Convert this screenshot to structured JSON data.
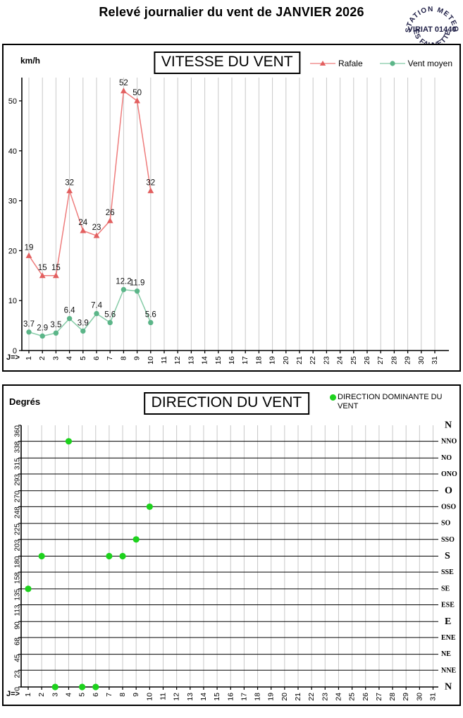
{
  "page": {
    "title": "Relevé journalier du vent de JANVIER 2026"
  },
  "stamp": {
    "arc_top": "STATION METEO",
    "center": "VIRIAT 01440",
    "arc_bottom": "LES FAUVETTES"
  },
  "colors": {
    "grid": "#c8c8c8",
    "axis": "#000000",
    "rafale_line": "#ee7c7c",
    "rafale_marker": "#e25f5f",
    "vent_moyen_line": "#85cba6",
    "vent_moyen_marker": "#5bb588",
    "direction_point": "#1dd21d",
    "stamp_ink": "#1f1f46"
  },
  "chart_data": [
    {
      "type": "line",
      "title": "VITESSE DU VENT",
      "unit_label": "km/h",
      "x_axis_label": "J=>",
      "x": [
        1,
        2,
        3,
        4,
        5,
        6,
        7,
        8,
        9,
        10,
        11,
        12,
        13,
        14,
        15,
        16,
        17,
        18,
        19,
        20,
        21,
        22,
        23,
        24,
        25,
        26,
        27,
        28,
        29,
        30,
        31
      ],
      "yticks": [
        0,
        10,
        20,
        30,
        40,
        50
      ],
      "ylim": [
        0,
        55
      ],
      "grid": "vertical-only",
      "legend_position": "top-right",
      "series": [
        {
          "name": "Rafale",
          "marker": "triangle",
          "x": [
            1,
            2,
            3,
            4,
            5,
            6,
            7,
            8,
            9,
            10
          ],
          "values": [
            19,
            15,
            15,
            32,
            24,
            23,
            26,
            52,
            50,
            32
          ]
        },
        {
          "name": "Vent moyen",
          "marker": "circle",
          "x": [
            1,
            2,
            3,
            4,
            5,
            6,
            7,
            8,
            9,
            10
          ],
          "values": [
            3.7,
            2.9,
            3.5,
            6.4,
            3.9,
            7.4,
            5.6,
            12.2,
            11.9,
            5.6
          ]
        }
      ]
    },
    {
      "type": "scatter",
      "title": "DIRECTION DU VENT",
      "unit_label": "Degrés",
      "x_axis_label": "J=>",
      "x": [
        1,
        2,
        3,
        4,
        5,
        6,
        7,
        8,
        9,
        10,
        11,
        12,
        13,
        14,
        15,
        16,
        17,
        18,
        19,
        20,
        21,
        22,
        23,
        24,
        25,
        26,
        27,
        28,
        29,
        30,
        31
      ],
      "yticks": [
        0,
        23,
        45,
        68,
        90,
        113,
        135,
        158,
        180,
        203,
        225,
        248,
        270,
        293,
        315,
        338,
        360
      ],
      "ylim": [
        0,
        360
      ],
      "grid": "full",
      "right_axis_labels_top_to_bottom": [
        {
          "label": "N",
          "major": true
        },
        {
          "label": "NNO",
          "major": false
        },
        {
          "label": "NO",
          "major": false
        },
        {
          "label": "ONO",
          "major": false
        },
        {
          "label": "O",
          "major": true
        },
        {
          "label": "OSO",
          "major": false
        },
        {
          "label": "SO",
          "major": false
        },
        {
          "label": "SSO",
          "major": false
        },
        {
          "label": "S",
          "major": true
        },
        {
          "label": "SSE",
          "major": false
        },
        {
          "label": "SE",
          "major": false
        },
        {
          "label": "ESE",
          "major": false
        },
        {
          "label": "E",
          "major": true
        },
        {
          "label": "ENE",
          "major": false
        },
        {
          "label": "NE",
          "major": false
        },
        {
          "label": "NNE",
          "major": false
        },
        {
          "label": "N",
          "major": true
        }
      ],
      "series": [
        {
          "name": "DIRECTION DOMINANTE DU VENT",
          "marker": "circle",
          "x": [
            1,
            2,
            3,
            4,
            5,
            6,
            7,
            8,
            9,
            10
          ],
          "values": [
            135,
            180,
            0,
            338,
            0,
            0,
            180,
            180,
            203,
            248
          ]
        }
      ]
    }
  ]
}
